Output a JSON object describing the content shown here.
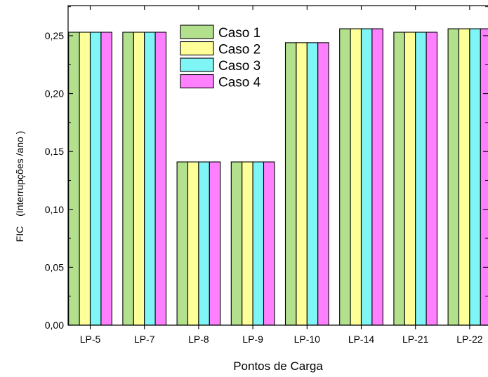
{
  "chart_data": {
    "type": "bar",
    "xlabel": "Pontos de Carga",
    "ylabel": "FIC",
    "ylabel_unit": "(Interrupções /ano )",
    "categories": [
      "LP-5",
      "LP-7",
      "LP-8",
      "LP-9",
      "LP-10",
      "LP-14",
      "LP-21",
      "LP-22"
    ],
    "yticks": [
      "0,00",
      "0,05",
      "0,10",
      "0,15",
      "0,20",
      "0,25"
    ],
    "ylim": [
      0,
      0.276
    ],
    "grid": false,
    "legend_position": "top-center",
    "series": [
      {
        "name": "Caso 1",
        "color": "#b3e08c",
        "values": [
          0.253,
          0.253,
          0.141,
          0.141,
          0.244,
          0.256,
          0.253,
          0.256
        ]
      },
      {
        "name": "Caso 2",
        "color": "#ffff99",
        "values": [
          0.253,
          0.253,
          0.141,
          0.141,
          0.244,
          0.256,
          0.253,
          0.256
        ]
      },
      {
        "name": "Caso 3",
        "color": "#80f5f5",
        "values": [
          0.253,
          0.253,
          0.141,
          0.141,
          0.244,
          0.256,
          0.253,
          0.256
        ]
      },
      {
        "name": "Caso 4",
        "color": "#ff80ff",
        "values": [
          0.253,
          0.253,
          0.141,
          0.141,
          0.244,
          0.256,
          0.253,
          0.256
        ]
      }
    ]
  }
}
